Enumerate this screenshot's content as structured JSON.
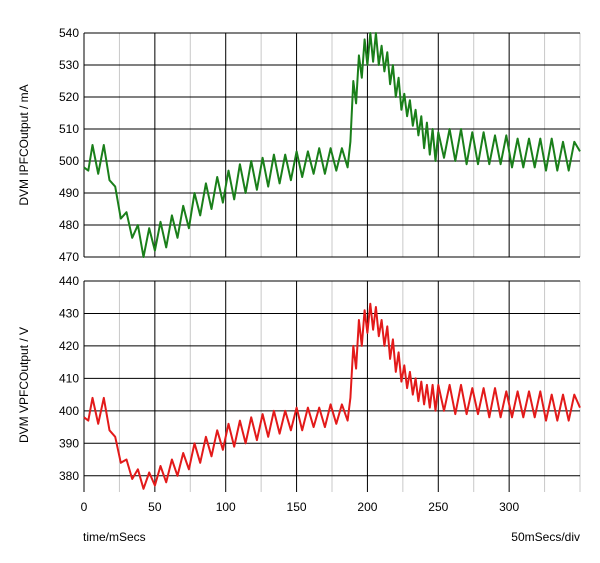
{
  "chart_data": {
    "type": "line",
    "x_axis": {
      "label": "time/mSecs",
      "scale_note": "50mSecs/div",
      "range": [
        0,
        350
      ],
      "ticks": [
        0,
        50,
        100,
        150,
        200,
        250,
        300
      ],
      "minor_step": 25
    },
    "panels": [
      {
        "ylabel": "DVM IPFCOutput / mA",
        "ylim": [
          470,
          540
        ],
        "yticks": [
          470,
          480,
          490,
          500,
          510,
          520,
          530,
          540
        ],
        "series": [
          {
            "color": "#1a7f1a",
            "x": [
              0,
              3,
              6,
              10,
              14,
              18,
              22,
              26,
              30,
              34,
              38,
              42,
              46,
              50,
              54,
              58,
              62,
              66,
              70,
              74,
              78,
              82,
              86,
              90,
              94,
              98,
              102,
              106,
              110,
              114,
              118,
              122,
              126,
              130,
              134,
              138,
              142,
              146,
              150,
              154,
              158,
              162,
              166,
              170,
              174,
              178,
              182,
              186,
              188,
              190,
              192,
              194,
              196,
              198,
              200,
              202,
              204,
              206,
              208,
              210,
              212,
              214,
              216,
              218,
              220,
              222,
              224,
              226,
              228,
              230,
              232,
              234,
              236,
              238,
              240,
              242,
              244,
              246,
              248,
              250,
              254,
              258,
              262,
              266,
              270,
              274,
              278,
              282,
              286,
              290,
              294,
              298,
              302,
              306,
              310,
              314,
              318,
              322,
              326,
              330,
              334,
              338,
              342,
              346,
              350
            ],
            "values": [
              498,
              497,
              505,
              496,
              505,
              494,
              492,
              482,
              484,
              476,
              480,
              470,
              479,
              472,
              481,
              473,
              483,
              476,
              486,
              479,
              490,
              483,
              493,
              485,
              495,
              487,
              497,
              488,
              499,
              490,
              500,
              491,
              501,
              492,
              502,
              493,
              502,
              494,
              503,
              495,
              503,
              496,
              504,
              496,
              504,
              497,
              504,
              498,
              506,
              525,
              518,
              533,
              526,
              538,
              530,
              540,
              531,
              540,
              530,
              536,
              528,
              534,
              524,
              530,
              520,
              526,
              516,
              521,
              514,
              519,
              511,
              516,
              508,
              514,
              504,
              512,
              502,
              510,
              500,
              509,
              501,
              510,
              500,
              510,
              499,
              509,
              499,
              509,
              499,
              508,
              499,
              508,
              498,
              507,
              498,
              507,
              498,
              507,
              497,
              507,
              497,
              506,
              497,
              506,
              503
            ]
          }
        ]
      },
      {
        "ylabel": "DVM VPFCOutput / V",
        "ylim": [
          375,
          440
        ],
        "yticks": [
          380,
          390,
          400,
          410,
          420,
          430,
          440
        ],
        "series": [
          {
            "color": "#e31a1a",
            "x": [
              0,
              3,
              6,
              10,
              14,
              18,
              22,
              26,
              30,
              34,
              38,
              42,
              46,
              50,
              54,
              58,
              62,
              66,
              70,
              74,
              78,
              82,
              86,
              90,
              94,
              98,
              102,
              106,
              110,
              114,
              118,
              122,
              126,
              130,
              134,
              138,
              142,
              146,
              150,
              154,
              158,
              162,
              166,
              170,
              174,
              178,
              182,
              186,
              188,
              190,
              192,
              194,
              196,
              198,
              200,
              202,
              204,
              206,
              208,
              210,
              212,
              214,
              216,
              218,
              220,
              222,
              224,
              226,
              228,
              230,
              232,
              234,
              236,
              238,
              240,
              242,
              244,
              246,
              248,
              250,
              254,
              258,
              262,
              266,
              270,
              274,
              278,
              282,
              286,
              290,
              294,
              298,
              302,
              306,
              310,
              314,
              318,
              322,
              326,
              330,
              334,
              338,
              342,
              346,
              350
            ],
            "values": [
              398,
              397,
              404,
              396,
              404,
              394,
              392,
              384,
              385,
              379,
              382,
              376,
              381,
              377,
              383,
              378,
              385,
              380,
              387,
              382,
              390,
              384,
              392,
              386,
              394,
              388,
              396,
              389,
              397,
              390,
              398,
              391,
              399,
              392,
              400,
              393,
              400,
              394,
              401,
              394,
              401,
              395,
              401,
              395,
              402,
              396,
              402,
              397,
              404,
              420,
              413,
              428,
              420,
              431,
              424,
              433,
              425,
              432,
              423,
              428,
              420,
              426,
              416,
              422,
              412,
              418,
              409,
              414,
              407,
              412,
              405,
              410,
              403,
              409,
              402,
              408,
              401,
              408,
              400,
              408,
              400,
              408,
              399,
              408,
              399,
              407,
              399,
              407,
              398,
              407,
              398,
              406,
              398,
              406,
              398,
              406,
              398,
              406,
              397,
              405,
              397,
              405,
              397,
              405,
              401
            ]
          }
        ]
      }
    ]
  }
}
